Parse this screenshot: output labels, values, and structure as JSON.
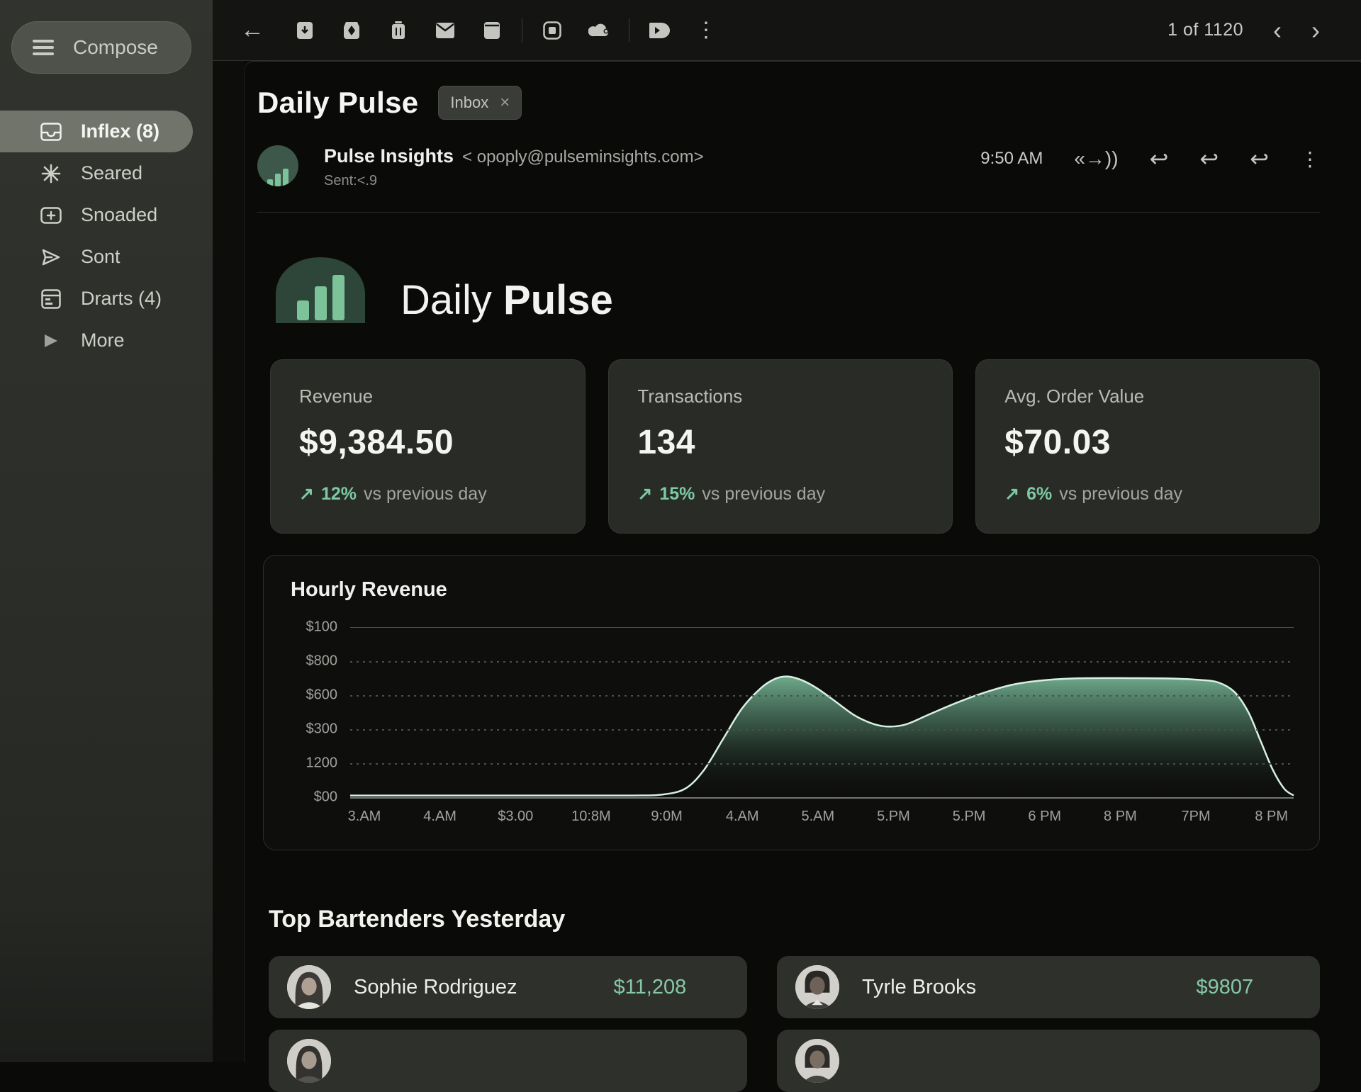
{
  "toolbar": {
    "page_indicator": "1 of 1120"
  },
  "icons": {
    "back": "←",
    "chevron_left": "‹",
    "chevron_right": "›",
    "more_vertical": "⋮",
    "close": "×",
    "reply": "↩",
    "reply_indicator": "«→))",
    "trend_up": "↗"
  },
  "sidebar": {
    "compose_label": "Compose",
    "items": [
      {
        "label": "Inflex (8)",
        "selected": true
      },
      {
        "label": "Seared",
        "selected": false
      },
      {
        "label": "Snoaded",
        "selected": false
      },
      {
        "label": "Sont",
        "selected": false
      },
      {
        "label": "Drarts (4)",
        "selected": false
      },
      {
        "label": "More",
        "selected": false
      }
    ]
  },
  "email": {
    "subject": "Daily Pulse",
    "label_chip": "Inbox",
    "sender_name": "Pulse Insights",
    "sender_address": "< opoply@pulseminsights.com>",
    "sent_line": "Sent:<.9",
    "time": "9:50 AM"
  },
  "body": {
    "brand_regular": "Daily",
    "brand_bold": "Pulse",
    "stats": [
      {
        "label": "Revenue",
        "value": "$9,384.50",
        "delta": "12%",
        "delta_suffix": "vs previous day"
      },
      {
        "label": "Transactions",
        "value": "134",
        "delta": "15%",
        "delta_suffix": "vs previous day"
      },
      {
        "label": "Avg. Order Value",
        "value": "$70.03",
        "delta": "6%",
        "delta_suffix": "vs previous day"
      }
    ],
    "bartenders": {
      "heading": "Top Bartenders Yesterday",
      "rows": [
        {
          "name": "Sophie Rodriguez",
          "amount": "$11,208"
        },
        {
          "name": "Tyrle Brooks",
          "amount": "$9807"
        }
      ]
    }
  },
  "chart_data": {
    "type": "area",
    "title": "Hourly Revenue",
    "x_labels": [
      "3.AM",
      "4.AM",
      "$3.00",
      "10:8M",
      "9:0M",
      "4.AM",
      "5.AM",
      "5.PM",
      "5.PM",
      "6 PM",
      "8 PM",
      "7PM",
      "8 PM"
    ],
    "y_labels": [
      "$100",
      "$800",
      "$600",
      "$300",
      "1200",
      "$00"
    ],
    "ylim": [
      0,
      100
    ],
    "grid": "horizontal-dotted, top and bottom solid",
    "legend": "none",
    "points": [
      [
        0.0,
        1
      ],
      [
        0.08,
        1
      ],
      [
        0.16,
        1
      ],
      [
        0.24,
        1
      ],
      [
        0.3,
        1
      ],
      [
        0.33,
        1.5
      ],
      [
        0.355,
        5
      ],
      [
        0.375,
        16
      ],
      [
        0.395,
        34
      ],
      [
        0.415,
        52
      ],
      [
        0.435,
        64
      ],
      [
        0.45,
        69.5
      ],
      [
        0.463,
        71
      ],
      [
        0.478,
        69
      ],
      [
        0.495,
        64
      ],
      [
        0.515,
        56
      ],
      [
        0.535,
        48
      ],
      [
        0.555,
        43
      ],
      [
        0.572,
        41.5
      ],
      [
        0.59,
        43
      ],
      [
        0.615,
        49
      ],
      [
        0.645,
        56
      ],
      [
        0.675,
        62
      ],
      [
        0.705,
        66.5
      ],
      [
        0.74,
        69
      ],
      [
        0.78,
        70
      ],
      [
        0.83,
        70
      ],
      [
        0.87,
        69.8
      ],
      [
        0.9,
        69
      ],
      [
        0.92,
        67.5
      ],
      [
        0.937,
        62
      ],
      [
        0.952,
        50
      ],
      [
        0.965,
        33
      ],
      [
        0.978,
        16
      ],
      [
        0.99,
        5
      ],
      [
        1.0,
        1
      ]
    ],
    "colors": {
      "line": "#d8f0e3",
      "fill_top": "#74b393",
      "fill_bottom": "#0e0f0d"
    }
  },
  "colors": {
    "accent_green": "#7cc9a2",
    "logo_dome": "#2e4539",
    "logo_bars": "#7cc39a",
    "card_bg": "#292b27",
    "sidebar_selected": "#70746a"
  }
}
